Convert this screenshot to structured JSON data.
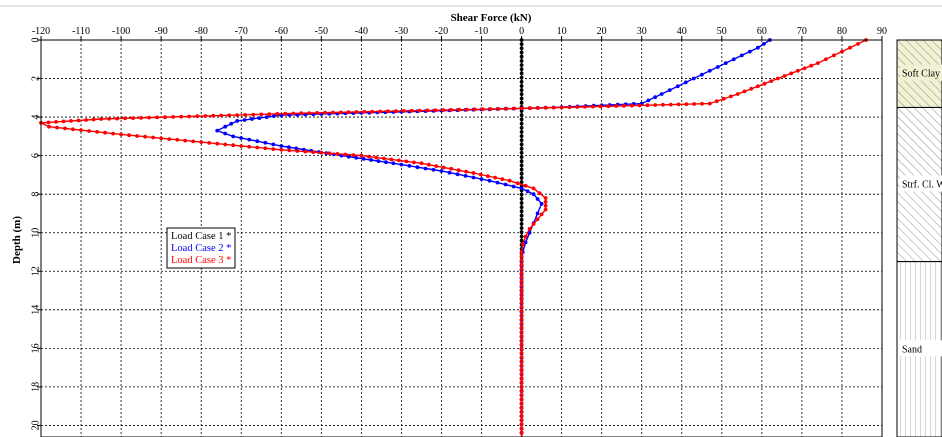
{
  "chart_data": {
    "type": "line",
    "title": "Shear Force (kN)",
    "xlabel": "Shear Force (kN)",
    "ylabel": "Depth (m)",
    "xlim": [
      -120,
      90
    ],
    "ylim": [
      0,
      20.6
    ],
    "x_ticks": [
      -120,
      -110,
      -100,
      -90,
      -80,
      -70,
      -60,
      -50,
      -40,
      -30,
      -20,
      -10,
      0,
      10,
      20,
      30,
      40,
      50,
      60,
      70,
      80,
      90
    ],
    "y_ticks": [
      0,
      2,
      4,
      6,
      8,
      10,
      12,
      14,
      16,
      18,
      20
    ],
    "grid": true,
    "legend_position": "left-middle",
    "series": [
      {
        "name": "Load Case 1 *",
        "color": "#000000",
        "points": [
          [
            0,
            0
          ],
          [
            0,
            20.6
          ]
        ]
      },
      {
        "name": "Load Case 2 *",
        "color": "#0000ff",
        "points": [
          [
            62,
            0
          ],
          [
            59,
            0.4
          ],
          [
            55,
            0.8
          ],
          [
            51,
            1.2
          ],
          [
            47,
            1.6
          ],
          [
            43,
            2.0
          ],
          [
            39,
            2.4
          ],
          [
            35,
            2.8
          ],
          [
            30,
            3.3
          ],
          [
            8,
            3.5
          ],
          [
            -60,
            3.9
          ],
          [
            -71,
            4.2
          ],
          [
            -74,
            4.5
          ],
          [
            -76,
            4.7
          ],
          [
            -72,
            5.0
          ],
          [
            -60,
            5.5
          ],
          [
            -45,
            6.0
          ],
          [
            -32,
            6.4
          ],
          [
            -20,
            6.8
          ],
          [
            -8,
            7.3
          ],
          [
            0,
            7.7
          ],
          [
            3,
            8.0
          ],
          [
            5,
            8.5
          ],
          [
            4,
            9.0
          ],
          [
            3,
            9.5
          ],
          [
            2,
            10.0
          ],
          [
            1,
            10.5
          ],
          [
            0.3,
            11.0
          ],
          [
            0,
            11.5
          ],
          [
            0,
            20.6
          ]
        ]
      },
      {
        "name": "Load Case 3 *",
        "color": "#ff0000",
        "points": [
          [
            86,
            0
          ],
          [
            82,
            0.4
          ],
          [
            78,
            0.8
          ],
          [
            74,
            1.2
          ],
          [
            69,
            1.6
          ],
          [
            64,
            2.0
          ],
          [
            59,
            2.4
          ],
          [
            54,
            2.8
          ],
          [
            47,
            3.3
          ],
          [
            10,
            3.5
          ],
          [
            -55,
            3.8
          ],
          [
            -105,
            4.1
          ],
          [
            -120,
            4.3
          ],
          [
            -118,
            4.5
          ],
          [
            -100,
            4.9
          ],
          [
            -80,
            5.3
          ],
          [
            -60,
            5.7
          ],
          [
            -40,
            6.0
          ],
          [
            -25,
            6.4
          ],
          [
            -12,
            6.9
          ],
          [
            -3,
            7.3
          ],
          [
            3,
            7.7
          ],
          [
            6,
            8.2
          ],
          [
            6,
            8.8
          ],
          [
            4,
            9.3
          ],
          [
            2,
            9.8
          ],
          [
            1,
            10.2
          ],
          [
            0.3,
            10.6
          ],
          [
            0,
            11.0
          ],
          [
            0,
            20.6
          ]
        ]
      }
    ],
    "legend": [
      "Load Case 1 *",
      "Load Case 2 *",
      "Load Case 3 *"
    ],
    "soil_layers": [
      {
        "label": "Soft Clay",
        "from": 0,
        "to": 3.5,
        "hatch": "diagonal",
        "fill": "#f1f1d3"
      },
      {
        "label": "Strf. Cl. W",
        "from": 3.5,
        "to": 11.5,
        "hatch": "diagonal",
        "fill": "#ffffff"
      },
      {
        "label": "Sand",
        "from": 11.5,
        "to": 20.6,
        "hatch": "vertical",
        "fill": "#ffffff"
      }
    ]
  }
}
